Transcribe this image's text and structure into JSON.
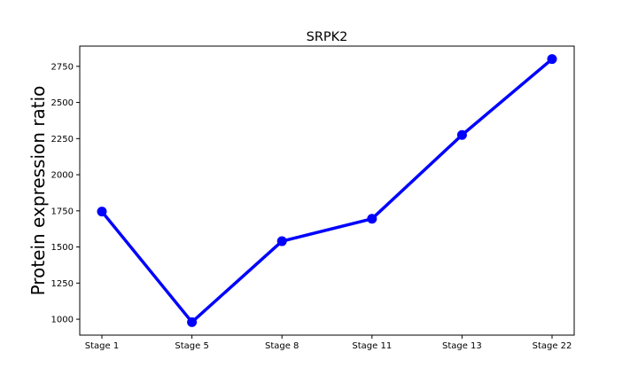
{
  "chart_data": {
    "type": "line",
    "title": "SRPK2",
    "xlabel": "",
    "ylabel": "Protein expression ratio",
    "categories": [
      "Stage 1",
      "Stage 5",
      "Stage 8",
      "Stage 11",
      "Stage 13",
      "Stage 22"
    ],
    "series": [
      {
        "values": [
          1745,
          980,
          1540,
          1695,
          2275,
          2800
        ],
        "color": "#0000ff",
        "marker": "circle"
      }
    ],
    "yticks": [
      1000,
      1250,
      1500,
      1750,
      2000,
      2250,
      2500,
      2750
    ],
    "ylim": [
      890,
      2890
    ],
    "grid": false
  }
}
